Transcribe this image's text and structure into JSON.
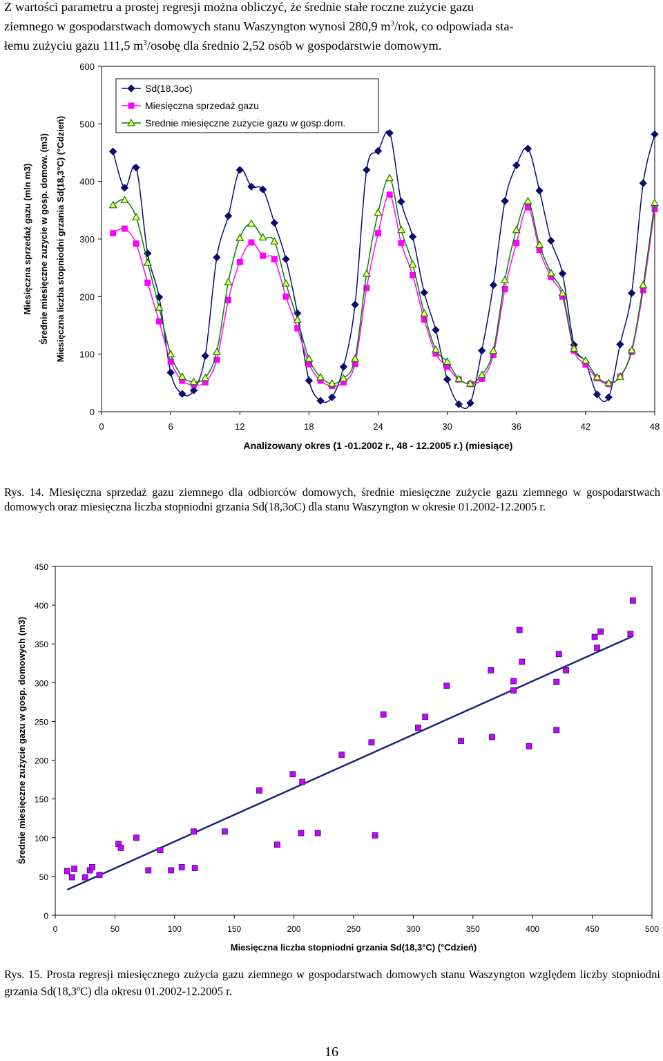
{
  "intro": {
    "p1": "Z wartości parametru a prostej regresji można obliczyć, że średnie stałe roczne zużycie gazu",
    "p2a": "ziemnego w gospodarstwach domowych stanu Waszyngton wynosi  280,9 m",
    "p2b": "/rok, co odpowiada sta-",
    "p3a": "łemu zużyciu gazu  111,5 m",
    "p3b": "/osobę dla średnio 2,52 osób w gospodarstwie domowym.",
    "sup": "3"
  },
  "chart_data": [
    {
      "type": "line",
      "xlabel": "Analizowany okres (1 -01.2002 r., 48 - 12.2005 r.) (miesiące)",
      "ylabel_lines": [
        "Miesięczna sprzedaż gazu (mln m3)",
        "Średnie miesięczne zuzycie w gosp. domow. (m3)",
        "Miesięczna liczba stopniodni grzania Sd(18,3°C) (°Cdzień)"
      ],
      "xlim": [
        0,
        48
      ],
      "ylim": [
        0,
        600
      ],
      "xticks": [
        0,
        6,
        12,
        18,
        24,
        30,
        36,
        42,
        48
      ],
      "yticks": [
        0,
        100,
        200,
        300,
        400,
        500,
        600
      ],
      "legend_position": "top-left",
      "series": [
        {
          "name": "Sd(18,3oc)",
          "color": "#0a0a6e",
          "marker": "diamond",
          "values": [
            452,
            389,
            424,
            275,
            199,
            68,
            31,
            37,
            97,
            268,
            340,
            420,
            391,
            386,
            328,
            265,
            171,
            54,
            19,
            25,
            78,
            186,
            420,
            453,
            484,
            365,
            304,
            207,
            142,
            56,
            13,
            15,
            106,
            220,
            366,
            428,
            457,
            384,
            297,
            240,
            116,
            86,
            30,
            25,
            117,
            206,
            397,
            482
          ]
        },
        {
          "name": "Miesięczna sprzedaż gazu",
          "color": "#ff00ff",
          "marker": "square",
          "values": [
            310,
            318,
            292,
            224,
            157,
            87,
            54,
            47,
            51,
            90,
            194,
            260,
            294,
            271,
            265,
            200,
            145,
            83,
            54,
            45,
            51,
            83,
            215,
            310,
            377,
            293,
            237,
            160,
            101,
            78,
            56,
            48,
            57,
            99,
            213,
            293,
            355,
            281,
            234,
            200,
            106,
            82,
            58,
            48,
            61,
            104,
            211,
            352
          ]
        },
        {
          "name": "Srednie miesięczne zużycie gazu w gosp.dom.",
          "color": "#008000",
          "marker": "triangle",
          "values": [
            359,
            368,
            338,
            259,
            181,
            100,
            61,
            52,
            59,
            104,
            225,
            302,
            327,
            303,
            296,
            223,
            160,
            92,
            60,
            49,
            58,
            92,
            240,
            346,
            406,
            316,
            256,
            171,
            108,
            87,
            57,
            49,
            64,
            106,
            229,
            316,
            366,
            290,
            241,
            206,
            110,
            89,
            60,
            50,
            61,
            107,
            220,
            363
          ]
        }
      ]
    },
    {
      "type": "scatter",
      "xlabel": "Miesięczna liczba stopniodni grzania Sd(18,3°C) (°Cdzień)",
      "ylabel": "Średnie miesięczne zużycie gazu w gosp. domowych (m3)",
      "xlim": [
        0,
        500
      ],
      "ylim": [
        0,
        450
      ],
      "xticks": [
        0,
        50,
        100,
        150,
        200,
        250,
        300,
        350,
        400,
        450,
        500
      ],
      "yticks": [
        0,
        50,
        100,
        150,
        200,
        250,
        300,
        350,
        400,
        450
      ],
      "points": [
        [
          10,
          57
        ],
        [
          14,
          49
        ],
        [
          16,
          60
        ],
        [
          25,
          49
        ],
        [
          29,
          58
        ],
        [
          31,
          62
        ],
        [
          37,
          52
        ],
        [
          53,
          92
        ],
        [
          55,
          87
        ],
        [
          68,
          100
        ],
        [
          78,
          58
        ],
        [
          88,
          84
        ],
        [
          97,
          58
        ],
        [
          106,
          62
        ],
        [
          116,
          108
        ],
        [
          117,
          61
        ],
        [
          142,
          108
        ],
        [
          171,
          161
        ],
        [
          186,
          91
        ],
        [
          199,
          182
        ],
        [
          206,
          106
        ],
        [
          207,
          172
        ],
        [
          220,
          106
        ],
        [
          240,
          207
        ],
        [
          265,
          223
        ],
        [
          268,
          103
        ],
        [
          275,
          259
        ],
        [
          304,
          242
        ],
        [
          310,
          256
        ],
        [
          328,
          296
        ],
        [
          340,
          225
        ],
        [
          365,
          316
        ],
        [
          366,
          230
        ],
        [
          384,
          290
        ],
        [
          384,
          302
        ],
        [
          389,
          368
        ],
        [
          391,
          327
        ],
        [
          397,
          218
        ],
        [
          420,
          239
        ],
        [
          420,
          301
        ],
        [
          422,
          337
        ],
        [
          428,
          316
        ],
        [
          452,
          359
        ],
        [
          454,
          345
        ],
        [
          457,
          366
        ],
        [
          482,
          363
        ],
        [
          484,
          406
        ]
      ],
      "regression": {
        "x": [
          10,
          484
        ],
        "y": [
          33,
          360
        ]
      },
      "marker_color": "#cc00ff",
      "line_color": "#1a237e"
    }
  ],
  "captions": {
    "fig14": "Rys. 14. Miesięczna sprzedaż gazu ziemnego dla odbiorców domowych, średnie miesięczne zużycie gazu ziemnego w gospodarstwach domowych oraz miesięczna liczba stopniodni grzania Sd(18,3oC) dla stanu Waszyngton w okresie 01.2002-12.2005 r.",
    "fig15a": "Rys. 15. Prosta regresji miesięcznego zużycia gazu ziemnego w gospodarstwach domowych stanu Waszyngton względem liczby stopniodni grzania Sd(18,3",
    "fig15sup": "o",
    "fig15b": "C) dla okresu 01.2002-12.2005 r."
  },
  "page_number": "16"
}
